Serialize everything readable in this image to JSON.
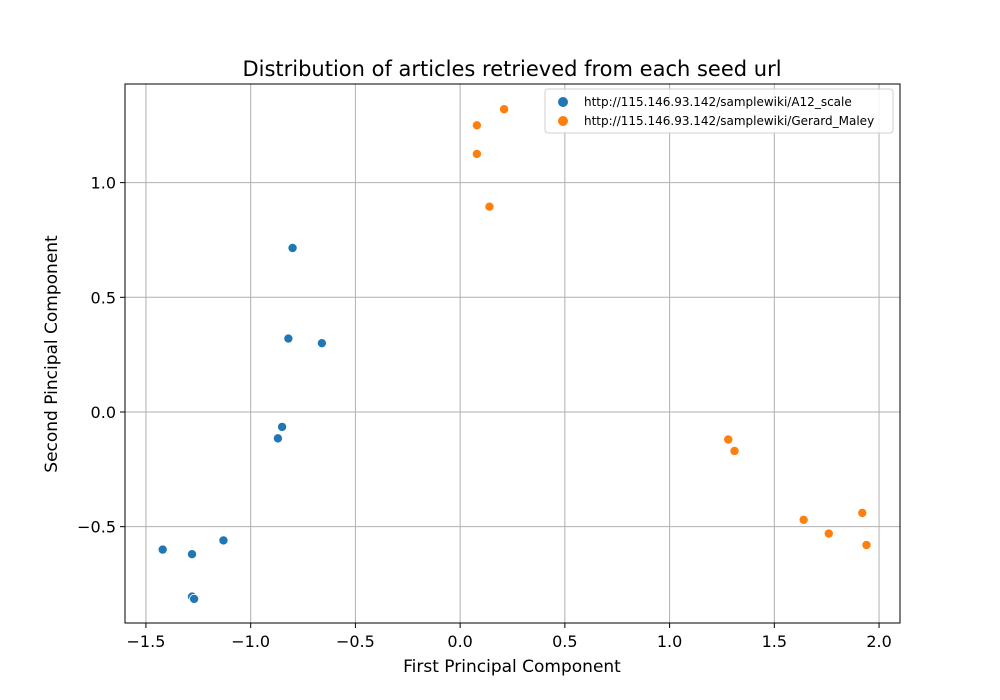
{
  "chart_data": {
    "type": "scatter",
    "title": "Distribution of articles retrieved from each seed url",
    "xlabel": "First Principal Component",
    "ylabel": "Second Pincipal Component",
    "xlim": [
      -1.6,
      2.1
    ],
    "ylim": [
      -0.92,
      1.43
    ],
    "xticks": [
      -1.5,
      -1.0,
      -0.5,
      0.0,
      0.5,
      1.0,
      1.5,
      2.0
    ],
    "xtick_labels": [
      "−1.5",
      "−1.0",
      "−0.5",
      "0.0",
      "0.5",
      "1.0",
      "1.5",
      "2.0"
    ],
    "yticks": [
      -0.5,
      0.0,
      0.5,
      1.0
    ],
    "ytick_labels": [
      "−0.5",
      "0.0",
      "0.5",
      "1.0"
    ],
    "grid": true,
    "legend_position": "top-right",
    "series": [
      {
        "name": "http://115.146.93.142/samplewiki/A12_scale",
        "color": "#1f77b4",
        "points": [
          [
            -0.8,
            0.715
          ],
          [
            -0.82,
            0.32
          ],
          [
            -0.66,
            0.3
          ],
          [
            -0.85,
            -0.065
          ],
          [
            -0.87,
            -0.115
          ],
          [
            -1.13,
            -0.56
          ],
          [
            -1.42,
            -0.6
          ],
          [
            -1.28,
            -0.62
          ],
          [
            -1.28,
            -0.805
          ],
          [
            -1.27,
            -0.815
          ]
        ]
      },
      {
        "name": "http://115.146.93.142/samplewiki/Gerard_Maley",
        "color": "#ff7f0e",
        "points": [
          [
            0.21,
            1.32
          ],
          [
            0.08,
            1.25
          ],
          [
            0.08,
            1.125
          ],
          [
            0.14,
            0.895
          ],
          [
            1.28,
            -0.12
          ],
          [
            1.31,
            -0.17
          ],
          [
            1.64,
            -0.47
          ],
          [
            1.76,
            -0.53
          ],
          [
            1.92,
            -0.44
          ],
          [
            1.94,
            -0.58
          ]
        ]
      }
    ]
  }
}
